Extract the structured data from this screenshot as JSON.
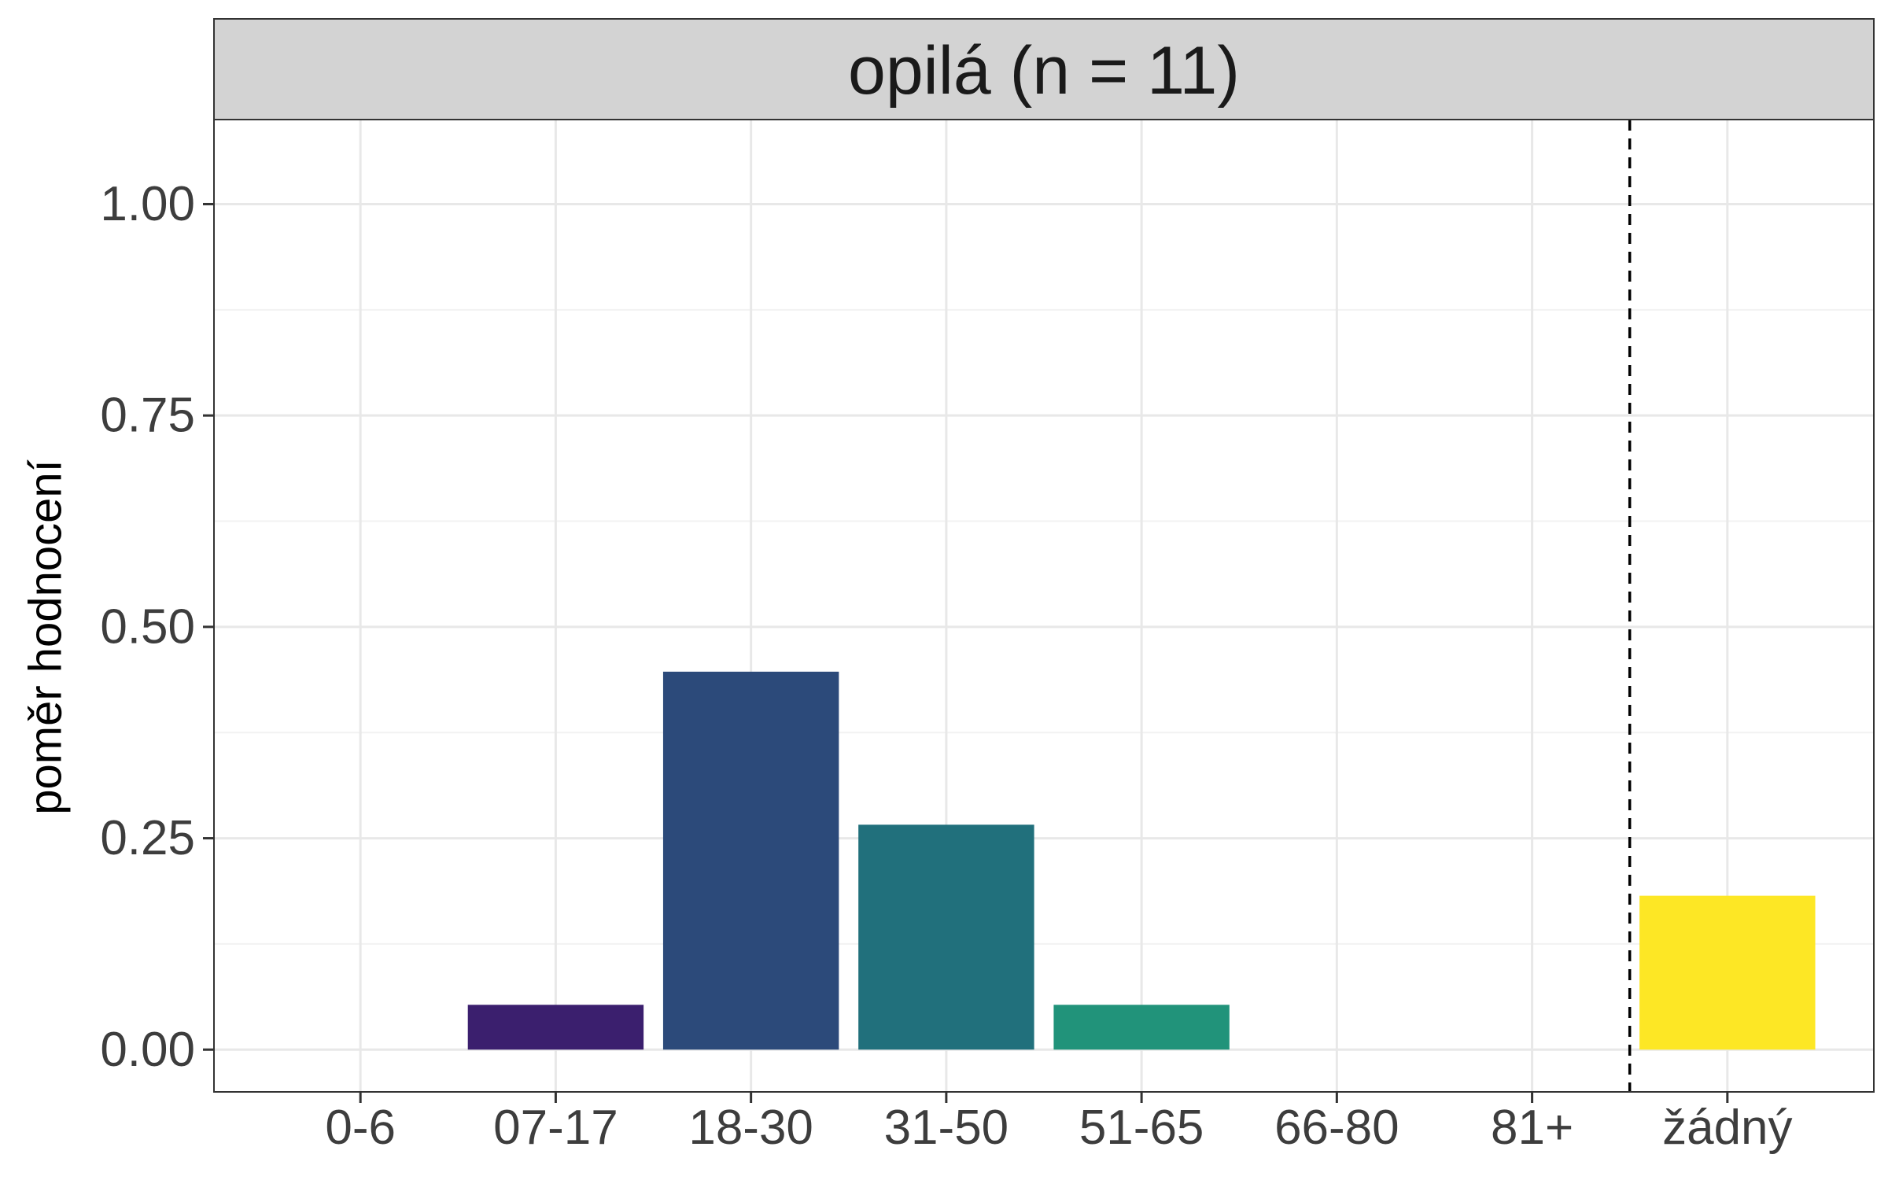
{
  "chart_data": {
    "type": "bar",
    "panel_title": "opilá (n = 11)",
    "ylabel": "poměr hodnocení",
    "xlabel": "",
    "categories": [
      "0-6",
      "07-17",
      "18-30",
      "31-50",
      "51-65",
      "66-80",
      "81+",
      "žádný"
    ],
    "values": [
      0.0,
      0.053,
      0.447,
      0.266,
      0.053,
      0.0,
      0.0,
      0.182
    ],
    "bar_colors": [
      "#440154",
      "#3B1F6E",
      "#2C4A7A",
      "#21707C",
      "#21937A",
      "#5EC962",
      "#B5DE2B",
      "#FDE725"
    ],
    "ylim": [
      -0.05,
      1.1
    ],
    "yticks": [
      0.0,
      0.25,
      0.5,
      0.75,
      1.0
    ],
    "ytick_labels": [
      "0.00",
      "0.25",
      "0.50",
      "0.75",
      "1.00"
    ],
    "reference_line": {
      "after_category": "81+",
      "style": "dashed"
    },
    "grid": true,
    "theme": "bw"
  }
}
